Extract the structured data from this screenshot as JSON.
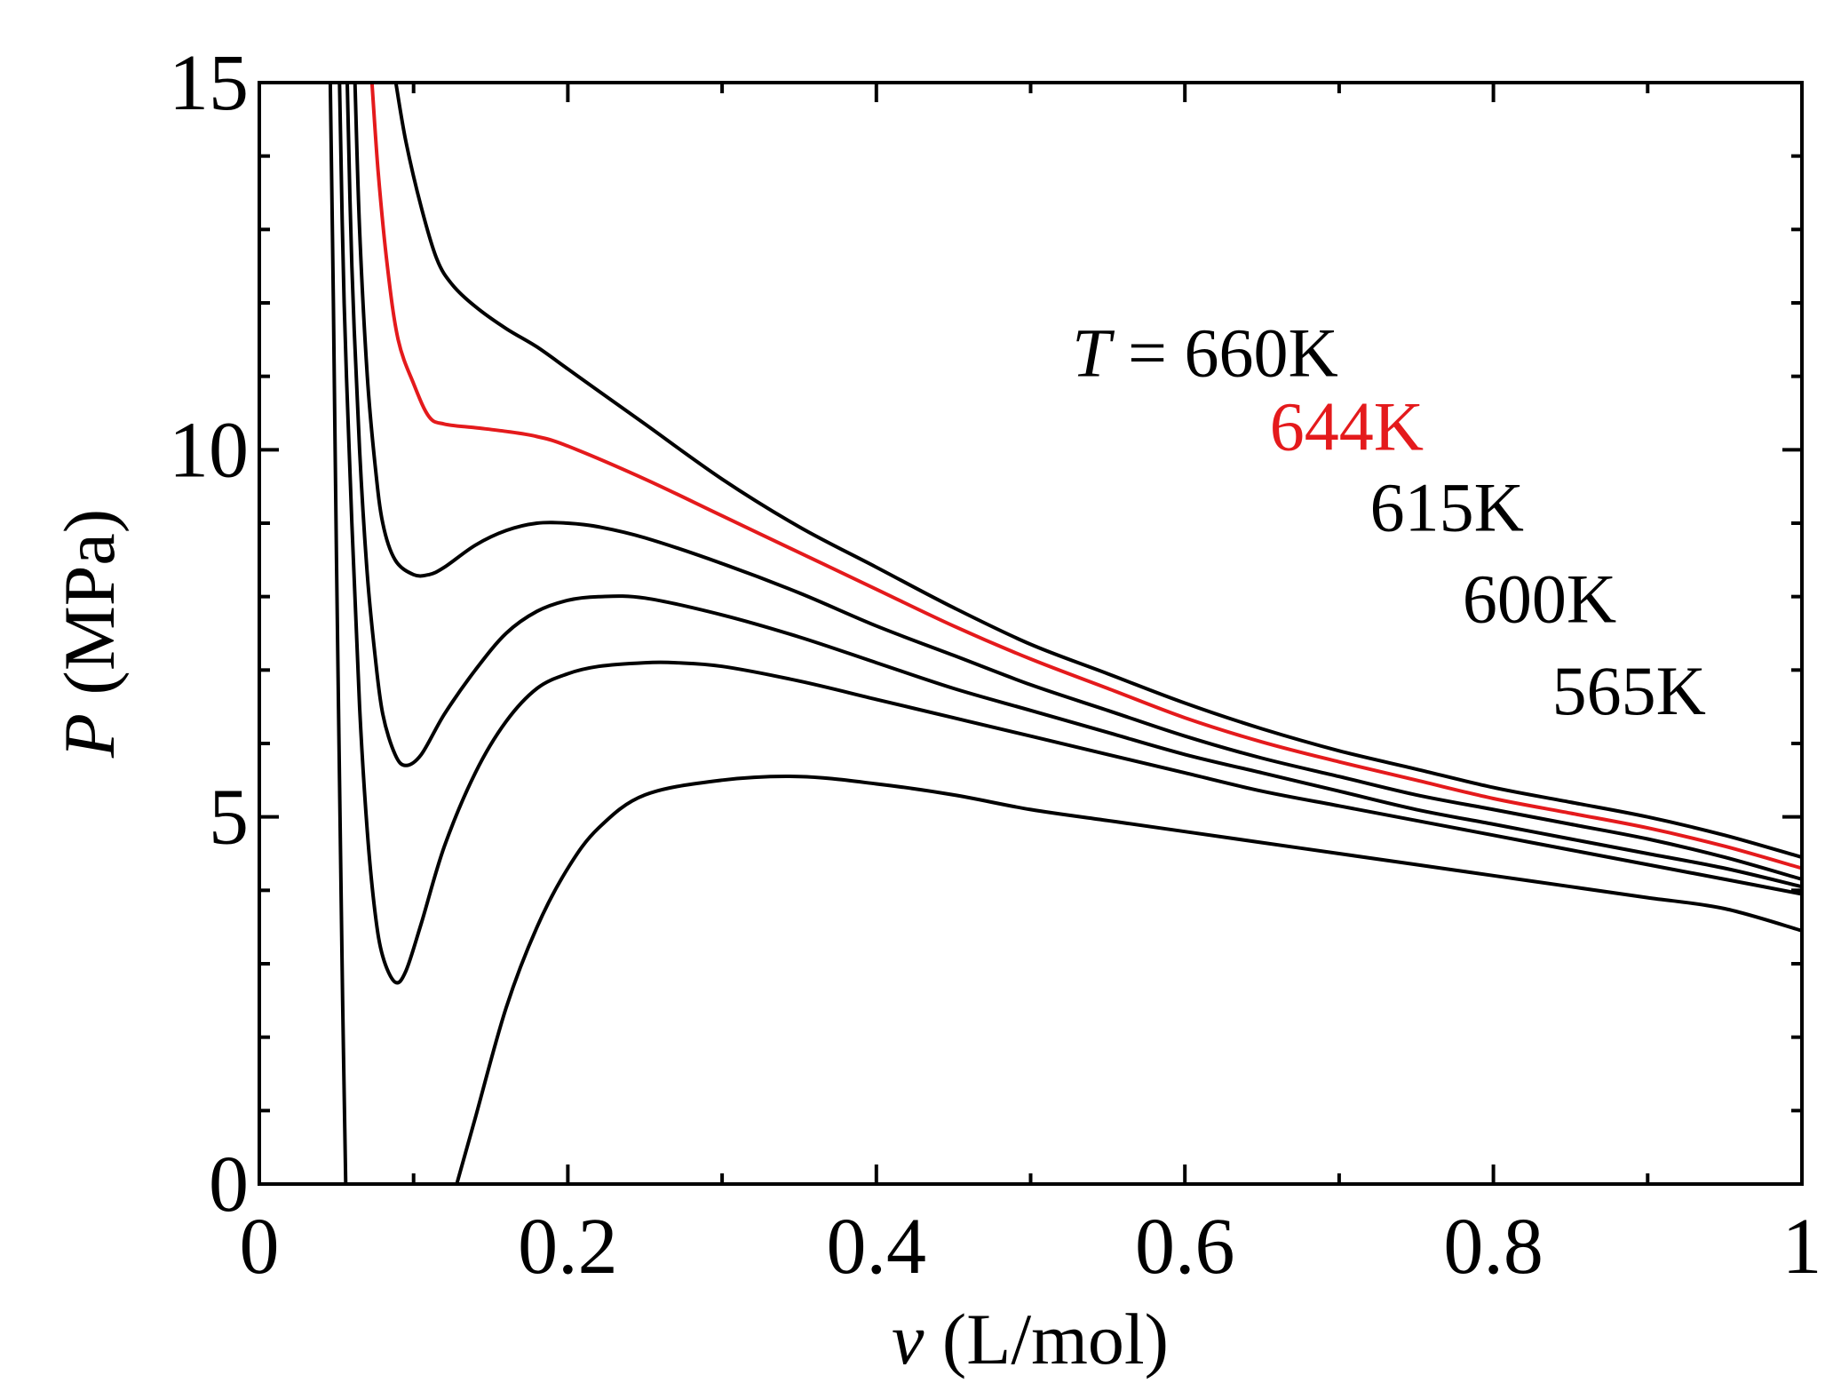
{
  "chart_data": {
    "type": "line",
    "title": "",
    "xlabel": {
      "var": "v",
      "unit": "(L/mol)"
    },
    "ylabel": {
      "var": "P",
      "unit": "(MPa)"
    },
    "xlim": [
      0,
      1
    ],
    "ylim": [
      0,
      15
    ],
    "xticks": [
      {
        "value": 0,
        "label": "0"
      },
      {
        "value": 0.2,
        "label": "0.2"
      },
      {
        "value": 0.4,
        "label": "0.4"
      },
      {
        "value": 0.6,
        "label": "0.6"
      },
      {
        "value": 0.8,
        "label": "0.8"
      },
      {
        "value": 1,
        "label": "1"
      }
    ],
    "xminor": [
      0.1,
      0.3,
      0.5,
      0.7,
      0.9
    ],
    "yticks": [
      {
        "value": 0,
        "label": "0"
      },
      {
        "value": 5,
        "label": "5"
      },
      {
        "value": 10,
        "label": "10"
      },
      {
        "value": 15,
        "label": "15"
      }
    ],
    "yminor": [
      1,
      2,
      3,
      4,
      6,
      7,
      8,
      9,
      11,
      12,
      13,
      14
    ],
    "grid": false,
    "annotation_prefix": {
      "var": "T",
      "eq": " = "
    },
    "series": [
      {
        "name": "660K",
        "color": "#000000",
        "label_at": [
          0.59,
          11.0
        ],
        "points": [
          [
            0.0885,
            15.0
          ],
          [
            0.095,
            14.2
          ],
          [
            0.105,
            13.3
          ],
          [
            0.115,
            12.6
          ],
          [
            0.125,
            12.25
          ],
          [
            0.14,
            11.95
          ],
          [
            0.16,
            11.65
          ],
          [
            0.18,
            11.4
          ],
          [
            0.2,
            11.1
          ],
          [
            0.22,
            10.8
          ],
          [
            0.25,
            10.35
          ],
          [
            0.3,
            9.6
          ],
          [
            0.35,
            8.95
          ],
          [
            0.4,
            8.4
          ],
          [
            0.45,
            7.85
          ],
          [
            0.5,
            7.35
          ],
          [
            0.55,
            6.95
          ],
          [
            0.6,
            6.55
          ],
          [
            0.65,
            6.2
          ],
          [
            0.7,
            5.9
          ],
          [
            0.75,
            5.65
          ],
          [
            0.8,
            5.4
          ],
          [
            0.85,
            5.2
          ],
          [
            0.9,
            5.0
          ],
          [
            0.95,
            4.75
          ],
          [
            1.0,
            4.45
          ]
        ]
      },
      {
        "name": "644K",
        "color": "#e41a1c",
        "label_at": [
          0.655,
          10.0
        ],
        "points": [
          [
            0.073,
            15.0
          ],
          [
            0.077,
            13.8
          ],
          [
            0.083,
            12.5
          ],
          [
            0.09,
            11.5
          ],
          [
            0.1,
            10.9
          ],
          [
            0.11,
            10.45
          ],
          [
            0.12,
            10.35
          ],
          [
            0.14,
            10.3
          ],
          [
            0.16,
            10.25
          ],
          [
            0.18,
            10.18
          ],
          [
            0.2,
            10.05
          ],
          [
            0.25,
            9.6
          ],
          [
            0.3,
            9.1
          ],
          [
            0.35,
            8.6
          ],
          [
            0.4,
            8.1
          ],
          [
            0.45,
            7.6
          ],
          [
            0.5,
            7.15
          ],
          [
            0.55,
            6.75
          ],
          [
            0.6,
            6.35
          ],
          [
            0.65,
            6.02
          ],
          [
            0.7,
            5.75
          ],
          [
            0.75,
            5.5
          ],
          [
            0.8,
            5.25
          ],
          [
            0.85,
            5.05
          ],
          [
            0.9,
            4.85
          ],
          [
            0.95,
            4.6
          ],
          [
            1.0,
            4.3
          ]
        ]
      },
      {
        "name": "615K",
        "color": "#000000",
        "label_at": [
          0.72,
          8.9
        ],
        "points": [
          [
            0.062,
            15.0
          ],
          [
            0.065,
            13.0
          ],
          [
            0.07,
            11.0
          ],
          [
            0.075,
            9.8
          ],
          [
            0.08,
            9.0
          ],
          [
            0.088,
            8.5
          ],
          [
            0.1,
            8.3
          ],
          [
            0.11,
            8.3
          ],
          [
            0.12,
            8.4
          ],
          [
            0.14,
            8.7
          ],
          [
            0.16,
            8.9
          ],
          [
            0.18,
            9.0
          ],
          [
            0.2,
            9.0
          ],
          [
            0.22,
            8.95
          ],
          [
            0.25,
            8.8
          ],
          [
            0.3,
            8.45
          ],
          [
            0.35,
            8.05
          ],
          [
            0.4,
            7.6
          ],
          [
            0.45,
            7.2
          ],
          [
            0.5,
            6.8
          ],
          [
            0.55,
            6.45
          ],
          [
            0.6,
            6.1
          ],
          [
            0.65,
            5.8
          ],
          [
            0.7,
            5.55
          ],
          [
            0.75,
            5.3
          ],
          [
            0.8,
            5.1
          ],
          [
            0.85,
            4.9
          ],
          [
            0.9,
            4.7
          ],
          [
            0.95,
            4.45
          ],
          [
            1.0,
            4.15
          ]
        ]
      },
      {
        "name": "600K",
        "color": "#000000",
        "label_at": [
          0.78,
          7.65
        ],
        "points": [
          [
            0.057,
            15.0
          ],
          [
            0.06,
            12.5
          ],
          [
            0.065,
            10.0
          ],
          [
            0.07,
            8.3
          ],
          [
            0.075,
            7.2
          ],
          [
            0.08,
            6.4
          ],
          [
            0.088,
            5.85
          ],
          [
            0.095,
            5.7
          ],
          [
            0.105,
            5.85
          ],
          [
            0.12,
            6.4
          ],
          [
            0.14,
            7.0
          ],
          [
            0.16,
            7.5
          ],
          [
            0.18,
            7.8
          ],
          [
            0.2,
            7.95
          ],
          [
            0.22,
            8.0
          ],
          [
            0.25,
            7.98
          ],
          [
            0.3,
            7.75
          ],
          [
            0.35,
            7.45
          ],
          [
            0.4,
            7.1
          ],
          [
            0.45,
            6.75
          ],
          [
            0.5,
            6.45
          ],
          [
            0.55,
            6.15
          ],
          [
            0.6,
            5.85
          ],
          [
            0.65,
            5.6
          ],
          [
            0.7,
            5.35
          ],
          [
            0.75,
            5.1
          ],
          [
            0.8,
            4.9
          ],
          [
            0.85,
            4.7
          ],
          [
            0.9,
            4.5
          ],
          [
            0.95,
            4.3
          ],
          [
            1.0,
            4.05
          ]
        ]
      },
      {
        "name": "565K",
        "color": "#000000",
        "label_at": [
          0.838,
          6.4
        ],
        "points": [
          [
            0.052,
            15.0
          ],
          [
            0.055,
            12.0
          ],
          [
            0.06,
            9.0
          ],
          [
            0.065,
            6.5
          ],
          [
            0.07,
            4.8
          ],
          [
            0.075,
            3.7
          ],
          [
            0.08,
            3.1
          ],
          [
            0.088,
            2.75
          ],
          [
            0.095,
            2.9
          ],
          [
            0.105,
            3.55
          ],
          [
            0.12,
            4.6
          ],
          [
            0.14,
            5.6
          ],
          [
            0.16,
            6.3
          ],
          [
            0.18,
            6.75
          ],
          [
            0.2,
            6.95
          ],
          [
            0.22,
            7.05
          ],
          [
            0.25,
            7.1
          ],
          [
            0.27,
            7.1
          ],
          [
            0.3,
            7.05
          ],
          [
            0.35,
            6.85
          ],
          [
            0.4,
            6.6
          ],
          [
            0.45,
            6.35
          ],
          [
            0.5,
            6.1
          ],
          [
            0.55,
            5.85
          ],
          [
            0.6,
            5.6
          ],
          [
            0.65,
            5.35
          ],
          [
            0.7,
            5.15
          ],
          [
            0.75,
            4.95
          ],
          [
            0.8,
            4.75
          ],
          [
            0.85,
            4.55
          ],
          [
            0.9,
            4.35
          ],
          [
            0.95,
            4.15
          ],
          [
            1.0,
            3.95
          ]
        ]
      },
      {
        "name": "",
        "color": "#000000",
        "label_at": null,
        "points": [
          [
            0.046,
            15.0
          ],
          [
            0.048,
            12.0
          ],
          [
            0.05,
            8.5
          ],
          [
            0.052,
            5.5
          ],
          [
            0.054,
            2.5
          ],
          [
            0.056,
            0.0
          ]
        ]
      },
      {
        "name": "",
        "color": "#000000",
        "label_at": null,
        "points": [
          [
            0.128,
            0.0
          ],
          [
            0.14,
            0.9
          ],
          [
            0.16,
            2.4
          ],
          [
            0.18,
            3.5
          ],
          [
            0.2,
            4.3
          ],
          [
            0.22,
            4.85
          ],
          [
            0.25,
            5.3
          ],
          [
            0.3,
            5.5
          ],
          [
            0.35,
            5.55
          ],
          [
            0.4,
            5.45
          ],
          [
            0.45,
            5.3
          ],
          [
            0.5,
            5.1
          ],
          [
            0.55,
            4.95
          ],
          [
            0.6,
            4.8
          ],
          [
            0.65,
            4.65
          ],
          [
            0.7,
            4.5
          ],
          [
            0.75,
            4.35
          ],
          [
            0.8,
            4.2
          ],
          [
            0.85,
            4.05
          ],
          [
            0.9,
            3.9
          ],
          [
            0.95,
            3.75
          ],
          [
            1.0,
            3.45
          ]
        ]
      }
    ]
  }
}
